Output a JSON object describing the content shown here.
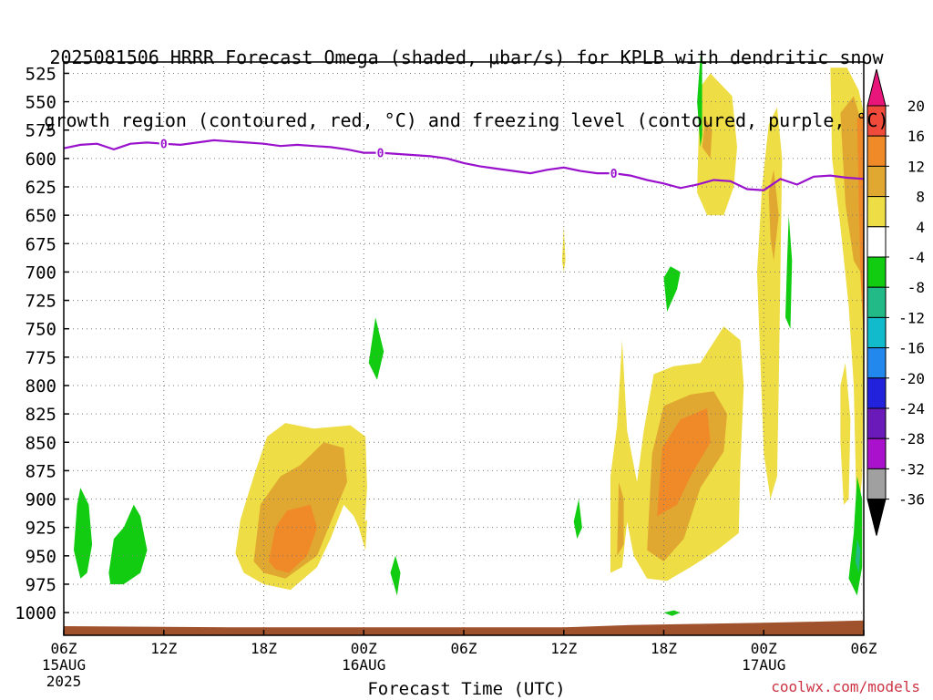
{
  "title_line1": "2025081506 HRRR Forecast Omega (shaded, μbar/s) for KPLB with dendritic snow",
  "title_line2": "growth region (contoured, red, °C) and freezing level (contoured, purple, °C)",
  "credit": "coolwx.com/models",
  "chart_data": {
    "type": "contour",
    "title": "2025081506 HRRR Forecast Omega (shaded, μbar/s) for KPLB with dendritic snow growth region (contoured, red, °C) and freezing level (contoured, purple, °C)",
    "xlabel": "Forecast Time (UTC)",
    "ylabel": "",
    "y_axis": {
      "reversed": true,
      "range": [
        515,
        1020
      ],
      "ticks": [
        525,
        550,
        575,
        600,
        625,
        650,
        675,
        700,
        725,
        750,
        775,
        800,
        825,
        850,
        875,
        900,
        925,
        950,
        975,
        1000
      ]
    },
    "x_axis": {
      "range_hours": [
        0,
        48
      ],
      "ticks": [
        {
          "hour": 0,
          "label": "06Z",
          "sub1": "15AUG",
          "sub2": "2025"
        },
        {
          "hour": 6,
          "label": "12Z",
          "sub1": "",
          "sub2": ""
        },
        {
          "hour": 12,
          "label": "18Z",
          "sub1": "",
          "sub2": ""
        },
        {
          "hour": 18,
          "label": "00Z",
          "sub1": "16AUG",
          "sub2": ""
        },
        {
          "hour": 24,
          "label": "06Z",
          "sub1": "",
          "sub2": ""
        },
        {
          "hour": 30,
          "label": "12Z",
          "sub1": "",
          "sub2": ""
        },
        {
          "hour": 36,
          "label": "18Z",
          "sub1": "",
          "sub2": ""
        },
        {
          "hour": 42,
          "label": "00Z",
          "sub1": "17AUG",
          "sub2": ""
        },
        {
          "hour": 48,
          "label": "06Z",
          "sub1": "",
          "sub2": ""
        }
      ]
    },
    "grid": true,
    "colorbar": {
      "units": "μbar/s",
      "labels": [
        "20",
        "16",
        "12",
        "8",
        "4",
        "-4",
        "-8",
        "-12",
        "-16",
        "-20",
        "-24",
        "-28",
        "-32",
        "-36"
      ],
      "colors": {
        "pos_4_8": "#eedd44",
        "pos_8_12": "#e0a830",
        "pos_12_16": "#f08a28",
        "pos_16_20": "#f04a3a",
        "pos_20_plus": "#e8157a",
        "neutral": "#ffffff",
        "neg_4_8": "#11cc11",
        "neg_8_12": "#22bb88",
        "neg_12_16": "#11bbcc",
        "neg_16_20": "#2288ee",
        "neg_20_24": "#2222dd",
        "neg_24_28": "#6a1ab8",
        "neg_28_32": "#aa11cc",
        "neg_32_36": "#a0a0a0",
        "neg_36_minus": "#000000"
      }
    },
    "freezing_level": {
      "label": "0",
      "color": "#9911cc",
      "hours": [
        0,
        1,
        2,
        3,
        4,
        5,
        6,
        7,
        8,
        9,
        10,
        11,
        12,
        13,
        14,
        15,
        16,
        17,
        18,
        19,
        20,
        21,
        22,
        23,
        24,
        25,
        26,
        27,
        28,
        29,
        30,
        31,
        32,
        33,
        34,
        35,
        36,
        37,
        38,
        39,
        40,
        41,
        42,
        43,
        44,
        45,
        46,
        47,
        48
      ],
      "pressure": [
        591,
        588,
        587,
        592,
        587,
        586,
        587,
        588,
        586,
        584,
        585,
        586,
        587,
        589,
        588,
        589,
        590,
        592,
        595,
        595,
        596,
        597,
        598,
        600,
        604,
        607,
        609,
        611,
        613,
        610,
        608,
        611,
        613,
        613,
        615,
        619,
        622,
        626,
        623,
        619,
        620,
        627,
        628,
        618,
        623,
        616,
        615,
        617,
        618
      ],
      "label_hours": [
        6,
        19,
        33
      ]
    },
    "omega_fields": [
      {
        "name": "pos_low_center",
        "value_range": "4 to 16",
        "hour_center": 13.5,
        "pressure_center": 930
      },
      {
        "name": "pos_low_right",
        "value_range": "4 to 16",
        "hour_center": 37.5,
        "pressure_center": 865
      },
      {
        "name": "pos_upper_right",
        "value_range": "4 to 16",
        "hour_center": 46.5,
        "pressure_center": 620
      },
      {
        "name": "neg_left",
        "value_range": "-4 to -8",
        "hour_center": 2.5,
        "pressure_center": 950
      }
    ],
    "surface_terrain_color": "#a0522d"
  },
  "x_title": "Forecast Time (UTC)"
}
